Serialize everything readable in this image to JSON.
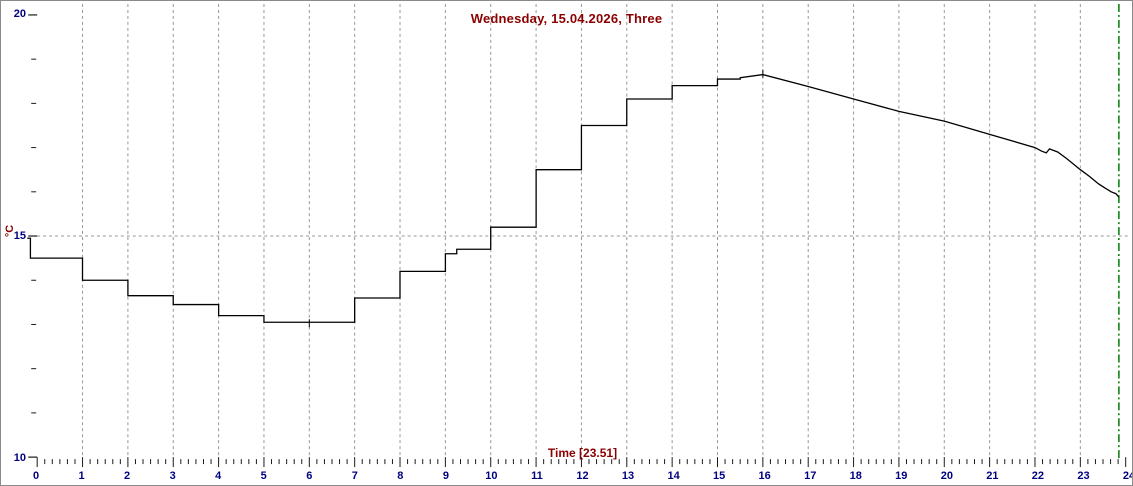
{
  "header": {
    "title": "Wednesday, 15.04.2026, Three",
    "title_color": "#8b0000"
  },
  "axes": {
    "x": {
      "label": "Time [23.51]",
      "label_color": "#8b0000",
      "tick_label_color": "#000080",
      "tick_color": "#1a1a1a",
      "hour_labels": [
        "0",
        "1",
        "2",
        "3",
        "4",
        "5",
        "6",
        "7",
        "8",
        "9",
        "10",
        "11",
        "12",
        "13",
        "14",
        "15",
        "16",
        "17",
        "18",
        "19",
        "20",
        "21",
        "22",
        "23",
        "24"
      ],
      "minor_divisions_per_hour": 6
    },
    "y": {
      "unit_label": "°C",
      "unit_color": "#8b0000",
      "tick_label_color": "#000080",
      "tick_color": "#1a1a1a",
      "major_labels": [
        10,
        15,
        20
      ],
      "minor_step": 1
    }
  },
  "grid": {
    "color": "#979797",
    "vertical_hours": [
      1,
      2,
      3,
      4,
      5,
      6,
      7,
      8,
      9,
      10,
      11,
      12,
      13,
      14,
      15,
      16,
      17,
      18,
      19,
      20,
      21,
      22,
      23
    ],
    "horizontal_values": [
      15
    ]
  },
  "current_time_marker": {
    "time_decimal": 23.85,
    "time_text": "23.51",
    "color": "#007a00"
  },
  "chart_data": {
    "type": "line",
    "subtype": "hourly-step-with-continuous-tail",
    "title": "Wednesday, 15.04.2026, Three",
    "xlabel": "Time [23.51]",
    "ylabel": "°C",
    "xlim": [
      0,
      24
    ],
    "ylim": [
      10,
      20
    ],
    "grid": "vertical dashed every hour; horizontal dashed at 15",
    "line_color": "#000000",
    "step_points": [
      [
        -0.22,
        14.95
      ],
      [
        -0.15,
        14.5
      ],
      [
        1,
        14.0
      ],
      [
        2,
        13.65
      ],
      [
        3,
        13.45
      ],
      [
        4,
        13.2
      ],
      [
        5,
        13.05
      ],
      [
        7,
        13.6
      ],
      [
        8,
        14.2
      ],
      [
        9,
        14.6
      ],
      [
        9.25,
        14.7
      ],
      [
        10,
        15.2
      ],
      [
        11,
        16.5
      ],
      [
        12,
        17.5
      ],
      [
        13,
        18.1
      ],
      [
        14,
        18.4
      ],
      [
        15,
        18.55
      ]
    ],
    "smooth_points": [
      [
        15.5,
        18.58
      ],
      [
        16,
        18.65
      ],
      [
        17,
        18.38
      ],
      [
        18,
        18.1
      ],
      [
        19,
        17.82
      ],
      [
        20,
        17.6
      ],
      [
        21,
        17.3
      ],
      [
        22,
        17.0
      ],
      [
        22.15,
        16.92
      ],
      [
        22.25,
        16.88
      ],
      [
        22.32,
        16.97
      ],
      [
        22.5,
        16.9
      ],
      [
        22.7,
        16.75
      ],
      [
        23,
        16.5
      ],
      [
        23.2,
        16.35
      ],
      [
        23.4,
        16.18
      ],
      [
        23.55,
        16.08
      ],
      [
        23.68,
        16.0
      ],
      [
        23.78,
        15.96
      ],
      [
        23.85,
        15.88
      ]
    ],
    "extremes": {
      "min": {
        "t": 6,
        "v": 13.05
      },
      "max": {
        "t": 16,
        "v": 18.65
      }
    }
  }
}
